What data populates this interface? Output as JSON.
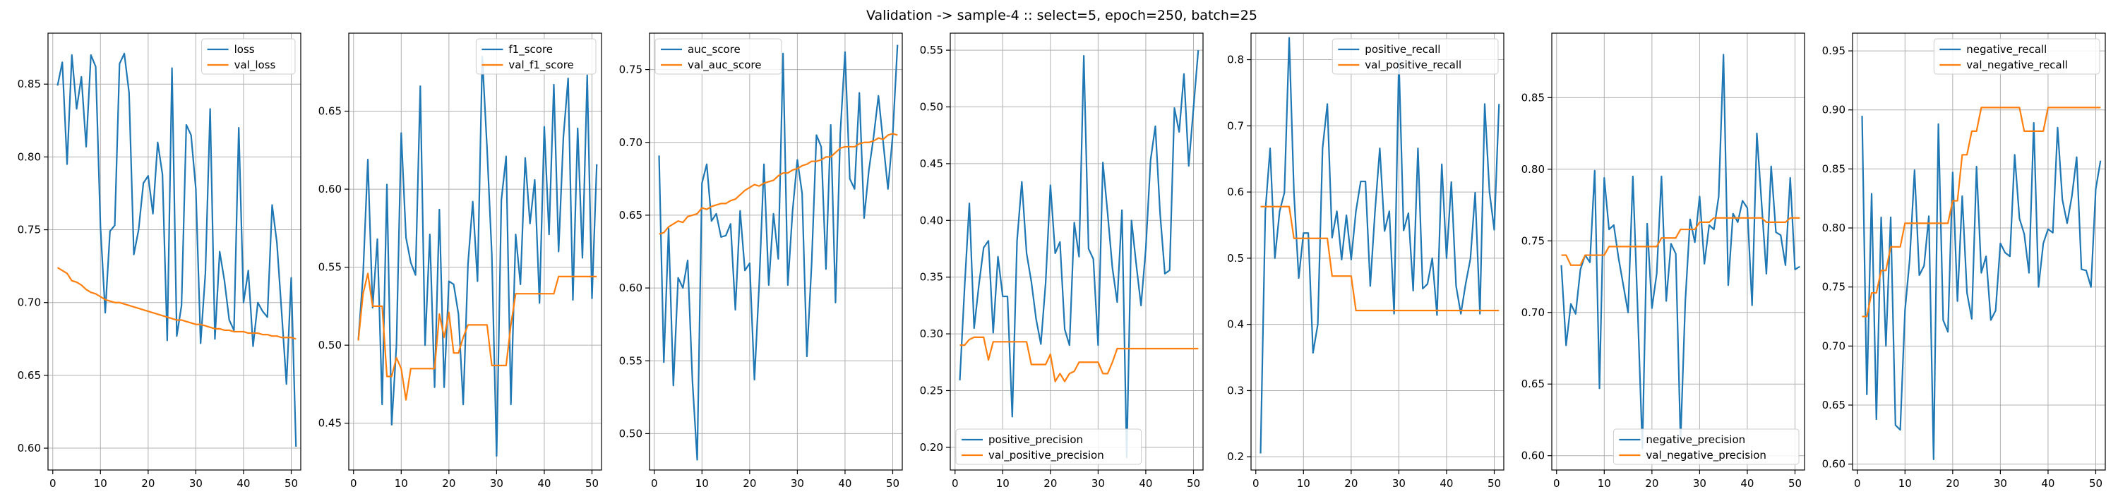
{
  "figure": {
    "suptitle": "Validation -> sample-4 :: select=5, epoch=250, batch=25"
  },
  "colors": {
    "train": "#1f77b4",
    "val": "#ff7f0e"
  },
  "chart_data": [
    {
      "type": "line",
      "xlim": [
        -1,
        52
      ],
      "ylim": [
        0.585,
        0.885
      ],
      "xticks": [
        0,
        10,
        20,
        30,
        40,
        50
      ],
      "yticks": [
        0.6,
        0.65,
        0.7,
        0.75,
        0.8,
        0.85
      ],
      "ytick_labels": [
        "0.60",
        "0.65",
        "0.70",
        "0.75",
        "0.80",
        "0.85"
      ],
      "grid": true,
      "legend_loc": "upper right",
      "series": [
        {
          "name": "loss",
          "values": [
            0.849,
            0.865,
            0.795,
            0.87,
            0.833,
            0.855,
            0.807,
            0.87,
            0.862,
            0.752,
            0.693,
            0.749,
            0.753,
            0.864,
            0.871,
            0.844,
            0.733,
            0.75,
            0.782,
            0.787,
            0.761,
            0.81,
            0.788,
            0.674,
            0.861,
            0.677,
            0.698,
            0.822,
            0.815,
            0.778,
            0.672,
            0.72,
            0.833,
            0.675,
            0.735,
            0.715,
            0.688,
            0.681,
            0.82,
            0.7,
            0.722,
            0.67,
            0.7,
            0.694,
            0.69,
            0.767,
            0.741,
            0.693,
            0.644,
            0.717,
            0.601
          ]
        },
        {
          "name": "val_loss",
          "values": [
            0.724,
            0.722,
            0.72,
            0.715,
            0.714,
            0.712,
            0.709,
            0.707,
            0.706,
            0.704,
            0.702,
            0.701,
            0.7,
            0.7,
            0.699,
            0.698,
            0.697,
            0.696,
            0.695,
            0.694,
            0.693,
            0.692,
            0.691,
            0.69,
            0.689,
            0.688,
            0.688,
            0.687,
            0.686,
            0.685,
            0.685,
            0.684,
            0.683,
            0.682,
            0.682,
            0.681,
            0.681,
            0.68,
            0.68,
            0.68,
            0.679,
            0.679,
            0.679,
            0.678,
            0.678,
            0.677,
            0.677,
            0.676,
            0.676,
            0.676,
            0.675
          ]
        }
      ]
    },
    {
      "type": "line",
      "xlim": [
        -1,
        52
      ],
      "ylim": [
        0.42,
        0.7
      ],
      "xticks": [
        0,
        10,
        20,
        30,
        40,
        50
      ],
      "yticks": [
        0.45,
        0.5,
        0.55,
        0.6,
        0.65
      ],
      "ytick_labels": [
        "0.45",
        "0.50",
        "0.55",
        "0.60",
        "0.65"
      ],
      "grid": true,
      "legend_loc": "upper right",
      "series": [
        {
          "name": "f1_score",
          "values": [
            0.503,
            0.545,
            0.619,
            0.524,
            0.568,
            0.462,
            0.603,
            0.449,
            0.5,
            0.636,
            0.569,
            0.553,
            0.545,
            0.666,
            0.5,
            0.571,
            0.473,
            0.587,
            0.473,
            0.541,
            0.539,
            0.52,
            0.462,
            0.552,
            0.592,
            0.541,
            0.685,
            0.626,
            0.558,
            0.429,
            0.593,
            0.621,
            0.462,
            0.571,
            0.539,
            0.62,
            0.578,
            0.606,
            0.527,
            0.64,
            0.571,
            0.667,
            0.56,
            0.633,
            0.671,
            0.529,
            0.639,
            0.556,
            0.673,
            0.53,
            0.616
          ]
        },
        {
          "name": "val_f1_score",
          "values": [
            0.503,
            0.533,
            0.546,
            0.525,
            0.525,
            0.525,
            0.48,
            0.48,
            0.492,
            0.485,
            0.465,
            0.485,
            0.485,
            0.485,
            0.485,
            0.485,
            0.485,
            0.52,
            0.505,
            0.521,
            0.495,
            0.495,
            0.505,
            0.513,
            0.513,
            0.513,
            0.513,
            0.513,
            0.487,
            0.487,
            0.487,
            0.487,
            0.513,
            0.533,
            0.533,
            0.533,
            0.533,
            0.533,
            0.533,
            0.533,
            0.533,
            0.533,
            0.544,
            0.544,
            0.544,
            0.544,
            0.544,
            0.544,
            0.544,
            0.544,
            0.544
          ]
        }
      ]
    },
    {
      "type": "line",
      "xlim": [
        -1,
        52
      ],
      "ylim": [
        0.475,
        0.775
      ],
      "xticks": [
        0,
        10,
        20,
        30,
        40,
        50
      ],
      "yticks": [
        0.5,
        0.55,
        0.6,
        0.65,
        0.7,
        0.75
      ],
      "ytick_labels": [
        "0.50",
        "0.55",
        "0.60",
        "0.65",
        "0.70",
        "0.75"
      ],
      "grid": true,
      "legend_loc": "upper left",
      "series": [
        {
          "name": "auc_score",
          "values": [
            0.691,
            0.549,
            0.641,
            0.533,
            0.607,
            0.6,
            0.619,
            0.536,
            0.482,
            0.672,
            0.685,
            0.646,
            0.651,
            0.635,
            0.636,
            0.644,
            0.585,
            0.653,
            0.612,
            0.617,
            0.537,
            0.603,
            0.685,
            0.602,
            0.651,
            0.62,
            0.761,
            0.602,
            0.653,
            0.688,
            0.665,
            0.553,
            0.617,
            0.705,
            0.697,
            0.613,
            0.712,
            0.59,
            0.706,
            0.762,
            0.675,
            0.668,
            0.734,
            0.648,
            0.681,
            0.704,
            0.732,
            0.7,
            0.668,
            0.705,
            0.767
          ]
        },
        {
          "name": "val_auc_score",
          "values": [
            0.637,
            0.638,
            0.642,
            0.644,
            0.646,
            0.645,
            0.649,
            0.65,
            0.651,
            0.655,
            0.654,
            0.656,
            0.657,
            0.658,
            0.658,
            0.66,
            0.661,
            0.664,
            0.667,
            0.669,
            0.671,
            0.67,
            0.672,
            0.673,
            0.674,
            0.677,
            0.679,
            0.679,
            0.681,
            0.682,
            0.684,
            0.685,
            0.687,
            0.687,
            0.688,
            0.69,
            0.69,
            0.693,
            0.696,
            0.697,
            0.697,
            0.697,
            0.699,
            0.7,
            0.7,
            0.701,
            0.703,
            0.702,
            0.705,
            0.706,
            0.705
          ]
        }
      ]
    },
    {
      "type": "line",
      "xlim": [
        -1,
        52
      ],
      "ylim": [
        0.18,
        0.565
      ],
      "xticks": [
        0,
        10,
        20,
        30,
        40,
        50
      ],
      "yticks": [
        0.2,
        0.25,
        0.3,
        0.35,
        0.4,
        0.45,
        0.5,
        0.55
      ],
      "ytick_labels": [
        "0.20",
        "0.25",
        "0.30",
        "0.35",
        "0.40",
        "0.45",
        "0.50",
        "0.55"
      ],
      "grid": true,
      "legend_loc": "lower left",
      "series": [
        {
          "name": "positive_precision",
          "values": [
            0.259,
            0.341,
            0.415,
            0.305,
            0.343,
            0.376,
            0.382,
            0.301,
            0.368,
            0.333,
            0.333,
            0.227,
            0.382,
            0.434,
            0.371,
            0.346,
            0.313,
            0.291,
            0.345,
            0.431,
            0.371,
            0.381,
            0.304,
            0.29,
            0.398,
            0.368,
            0.545,
            0.375,
            0.366,
            0.29,
            0.451,
            0.406,
            0.358,
            0.328,
            0.409,
            0.191,
            0.4,
            0.361,
            0.325,
            0.375,
            0.453,
            0.483,
            0.406,
            0.353,
            0.356,
            0.499,
            0.478,
            0.529,
            0.448,
            0.499,
            0.55
          ]
        },
        {
          "name": "val_positive_precision",
          "values": [
            0.29,
            0.29,
            0.295,
            0.297,
            0.297,
            0.297,
            0.277,
            0.293,
            0.293,
            0.293,
            0.293,
            0.293,
            0.293,
            0.293,
            0.293,
            0.273,
            0.273,
            0.273,
            0.273,
            0.282,
            0.258,
            0.265,
            0.258,
            0.265,
            0.267,
            0.275,
            0.275,
            0.275,
            0.275,
            0.275,
            0.265,
            0.265,
            0.275,
            0.287,
            0.287,
            0.287,
            0.287,
            0.287,
            0.287,
            0.287,
            0.287,
            0.287,
            0.287,
            0.287,
            0.287,
            0.287,
            0.287,
            0.287,
            0.287,
            0.287,
            0.287
          ]
        }
      ]
    },
    {
      "type": "line",
      "xlim": [
        -1,
        52
      ],
      "ylim": [
        0.18,
        0.84
      ],
      "xticks": [
        0,
        10,
        20,
        30,
        40,
        50
      ],
      "yticks": [
        0.2,
        0.3,
        0.4,
        0.5,
        0.6,
        0.7,
        0.8
      ],
      "ytick_labels": [
        "0.2",
        "0.3",
        "0.4",
        "0.5",
        "0.6",
        "0.7",
        "0.8"
      ],
      "grid": true,
      "legend_loc": "upper right",
      "series": [
        {
          "name": "positive_recall",
          "values": [
            0.205,
            0.571,
            0.666,
            0.5,
            0.571,
            0.599,
            0.833,
            0.599,
            0.47,
            0.538,
            0.538,
            0.357,
            0.4,
            0.666,
            0.733,
            0.531,
            0.571,
            0.498,
            0.565,
            0.498,
            0.571,
            0.616,
            0.616,
            0.458,
            0.571,
            0.666,
            0.541,
            0.571,
            0.416,
            0.8,
            0.542,
            0.568,
            0.451,
            0.666,
            0.454,
            0.461,
            0.5,
            0.414,
            0.642,
            0.5,
            0.615,
            0.458,
            0.416,
            0.461,
            0.499,
            0.599,
            0.416,
            0.733,
            0.6,
            0.543,
            0.733
          ]
        },
        {
          "name": "val_positive_recall",
          "values": [
            0.578,
            0.578,
            0.578,
            0.578,
            0.578,
            0.578,
            0.578,
            0.53,
            0.53,
            0.53,
            0.53,
            0.53,
            0.53,
            0.53,
            0.53,
            0.473,
            0.473,
            0.473,
            0.473,
            0.473,
            0.421,
            0.421,
            0.421,
            0.421,
            0.421,
            0.421,
            0.421,
            0.421,
            0.421,
            0.421,
            0.421,
            0.421,
            0.421,
            0.421,
            0.421,
            0.421,
            0.421,
            0.421,
            0.421,
            0.421,
            0.421,
            0.421,
            0.421,
            0.421,
            0.421,
            0.421,
            0.421,
            0.421,
            0.421,
            0.421,
            0.421
          ]
        }
      ]
    },
    {
      "type": "line",
      "xlim": [
        -1,
        52
      ],
      "ylim": [
        0.59,
        0.895
      ],
      "xticks": [
        0,
        10,
        20,
        30,
        40,
        50
      ],
      "yticks": [
        0.6,
        0.65,
        0.7,
        0.75,
        0.8,
        0.85
      ],
      "ytick_labels": [
        "0.60",
        "0.65",
        "0.70",
        "0.75",
        "0.80",
        "0.85"
      ],
      "grid": true,
      "legend_loc": "lower right",
      "series": [
        {
          "name": "negative_precision",
          "values": [
            0.733,
            0.677,
            0.706,
            0.699,
            0.73,
            0.74,
            0.735,
            0.799,
            0.647,
            0.794,
            0.758,
            0.761,
            0.738,
            0.719,
            0.7,
            0.795,
            0.703,
            0.605,
            0.762,
            0.703,
            0.727,
            0.795,
            0.708,
            0.748,
            0.741,
            0.61,
            0.708,
            0.765,
            0.749,
            0.781,
            0.734,
            0.761,
            0.758,
            0.781,
            0.88,
            0.719,
            0.769,
            0.763,
            0.778,
            0.773,
            0.705,
            0.825,
            0.776,
            0.727,
            0.802,
            0.756,
            0.754,
            0.733,
            0.794,
            0.73,
            0.732
          ]
        },
        {
          "name": "val_negative_precision",
          "values": [
            0.74,
            0.74,
            0.733,
            0.733,
            0.733,
            0.74,
            0.74,
            0.74,
            0.74,
            0.74,
            0.746,
            0.746,
            0.746,
            0.746,
            0.746,
            0.746,
            0.746,
            0.746,
            0.746,
            0.746,
            0.746,
            0.752,
            0.752,
            0.752,
            0.752,
            0.758,
            0.758,
            0.758,
            0.758,
            0.763,
            0.763,
            0.763,
            0.766,
            0.766,
            0.766,
            0.766,
            0.766,
            0.766,
            0.766,
            0.766,
            0.766,
            0.766,
            0.766,
            0.763,
            0.763,
            0.763,
            0.763,
            0.763,
            0.766,
            0.766,
            0.766
          ]
        }
      ]
    },
    {
      "type": "line",
      "xlim": [
        -1,
        52
      ],
      "ylim": [
        0.595,
        0.965
      ],
      "xticks": [
        0,
        10,
        20,
        30,
        40,
        50
      ],
      "yticks": [
        0.6,
        0.65,
        0.7,
        0.75,
        0.8,
        0.85,
        0.9,
        0.95
      ],
      "ytick_labels": [
        "0.60",
        "0.65",
        "0.70",
        "0.75",
        "0.80",
        "0.85",
        "0.90",
        "0.95"
      ],
      "grid": true,
      "legend_loc": "upper right",
      "series": [
        {
          "name": "negative_recall",
          "values": [
            0.895,
            0.659,
            0.829,
            0.638,
            0.809,
            0.7,
            0.809,
            0.633,
            0.629,
            0.73,
            0.774,
            0.849,
            0.76,
            0.768,
            0.81,
            0.604,
            0.888,
            0.722,
            0.712,
            0.847,
            0.738,
            0.827,
            0.745,
            0.723,
            0.852,
            0.762,
            0.776,
            0.722,
            0.73,
            0.787,
            0.779,
            0.776,
            0.862,
            0.808,
            0.795,
            0.762,
            0.889,
            0.75,
            0.787,
            0.799,
            0.796,
            0.885,
            0.824,
            0.804,
            0.827,
            0.86,
            0.765,
            0.764,
            0.75,
            0.833,
            0.857
          ]
        },
        {
          "name": "val_negative_recall",
          "values": [
            0.725,
            0.725,
            0.745,
            0.745,
            0.764,
            0.764,
            0.784,
            0.784,
            0.784,
            0.804,
            0.804,
            0.804,
            0.804,
            0.804,
            0.804,
            0.804,
            0.804,
            0.804,
            0.804,
            0.823,
            0.823,
            0.862,
            0.862,
            0.882,
            0.882,
            0.902,
            0.902,
            0.902,
            0.902,
            0.902,
            0.902,
            0.902,
            0.902,
            0.902,
            0.882,
            0.882,
            0.882,
            0.882,
            0.882,
            0.902,
            0.902,
            0.902,
            0.902,
            0.902,
            0.902,
            0.902,
            0.902,
            0.902,
            0.902,
            0.902,
            0.902
          ]
        }
      ]
    }
  ]
}
